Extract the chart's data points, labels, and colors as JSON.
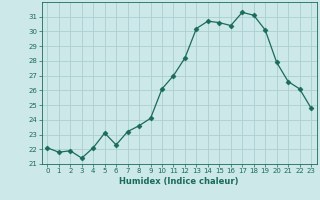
{
  "x": [
    0,
    1,
    2,
    3,
    4,
    5,
    6,
    7,
    8,
    9,
    10,
    11,
    12,
    13,
    14,
    15,
    16,
    17,
    18,
    19,
    20,
    21,
    22,
    23
  ],
  "y": [
    22.1,
    21.8,
    21.9,
    21.4,
    22.1,
    23.1,
    22.3,
    23.2,
    23.6,
    24.1,
    26.1,
    27.0,
    28.2,
    30.2,
    30.7,
    30.6,
    30.4,
    31.3,
    31.1,
    30.1,
    27.9,
    26.6,
    26.1,
    24.8
  ],
  "line_color": "#1a6b5a",
  "marker": "D",
  "marker_size": 2.5,
  "bg_color": "#cce8e8",
  "grid_color": "#aacfcf",
  "xlabel": "Humidex (Indice chaleur)",
  "ylim": [
    21,
    32
  ],
  "xlim": [
    -0.5,
    23.5
  ],
  "yticks": [
    21,
    22,
    23,
    24,
    25,
    26,
    27,
    28,
    29,
    30,
    31
  ],
  "xticks": [
    0,
    1,
    2,
    3,
    4,
    5,
    6,
    7,
    8,
    9,
    10,
    11,
    12,
    13,
    14,
    15,
    16,
    17,
    18,
    19,
    20,
    21,
    22,
    23
  ],
  "xtick_labels": [
    "0",
    "1",
    "2",
    "3",
    "4",
    "5",
    "6",
    "7",
    "8",
    "9",
    "10",
    "11",
    "12",
    "13",
    "14",
    "15",
    "16",
    "17",
    "18",
    "19",
    "20",
    "21",
    "22",
    "23"
  ]
}
